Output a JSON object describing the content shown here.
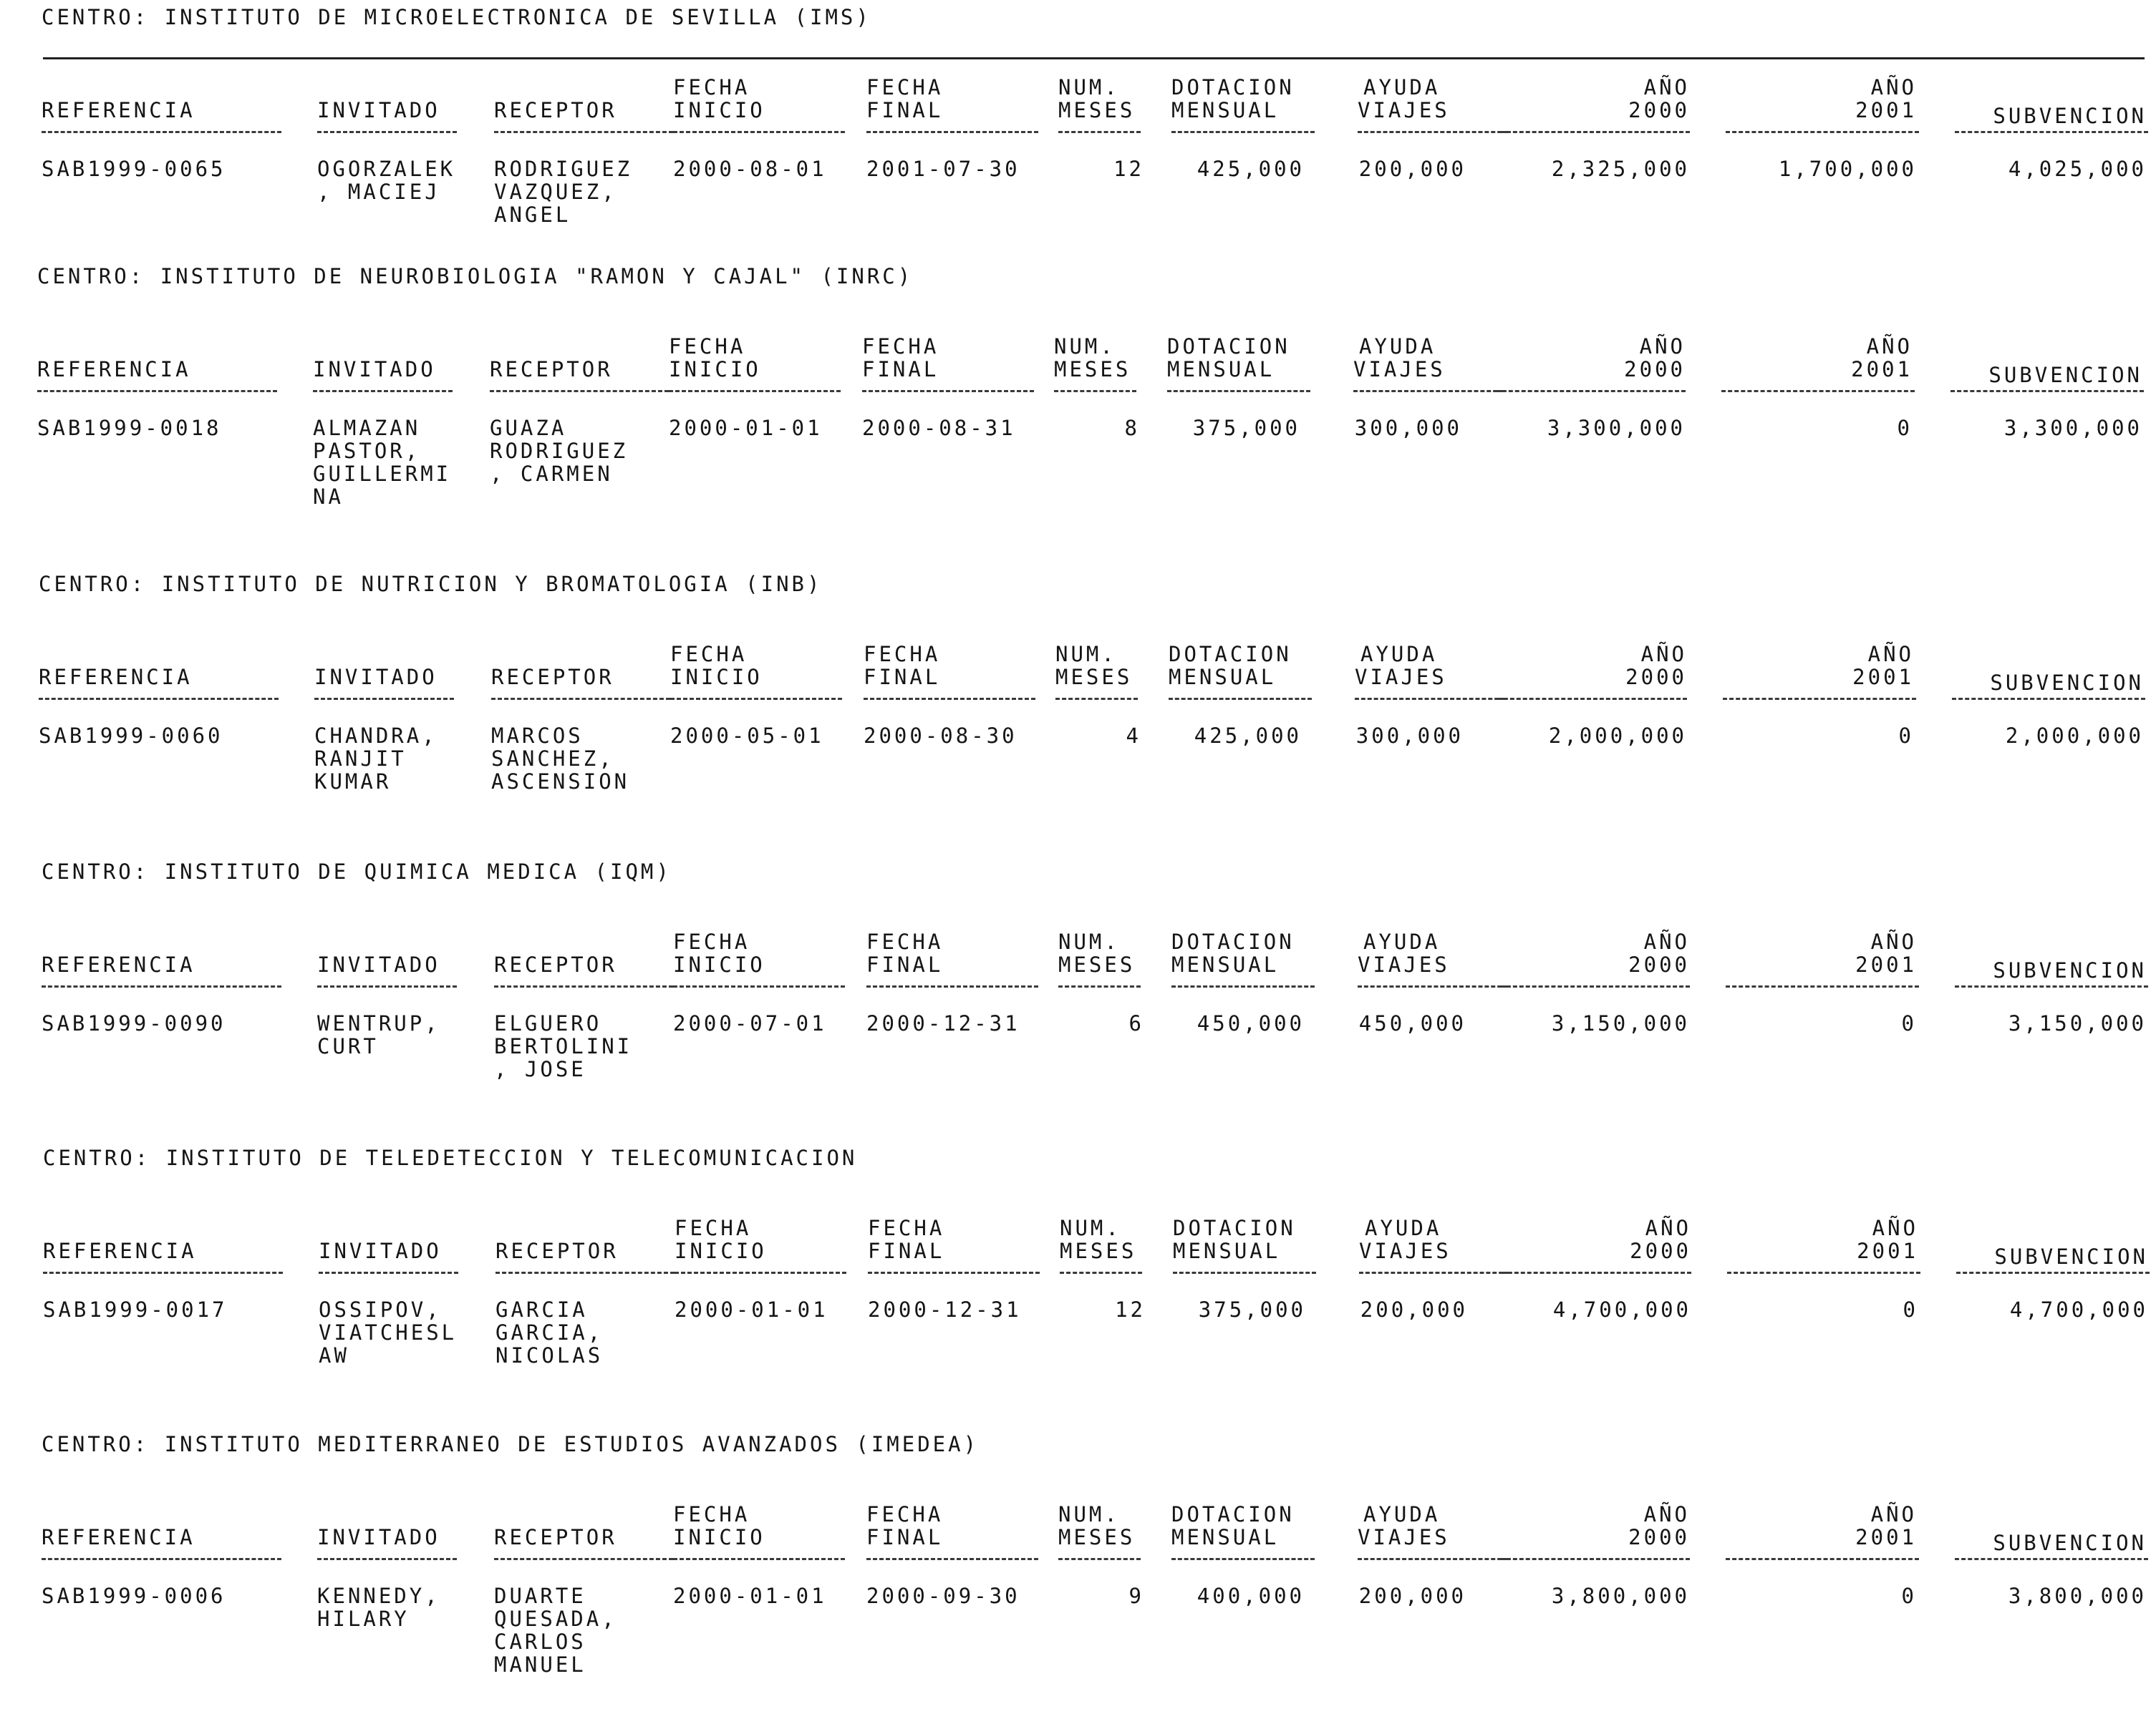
{
  "centro_label": "CENTRO:",
  "headers": {
    "referencia": "REFERENCIA",
    "invitado": "INVITADO",
    "receptor": "RECEPTOR",
    "fecha_inicio": [
      "FECHA",
      "INICIO"
    ],
    "fecha_final": [
      "FECHA",
      "FINAL"
    ],
    "num_meses": [
      "NUM.",
      "MESES"
    ],
    "dotacion": [
      "DOTACION",
      "MENSUAL"
    ],
    "ayuda": [
      "AYUDA",
      "VIAJES"
    ],
    "ano2000": [
      "AÑO",
      "2000"
    ],
    "ano2001": [
      "AÑO",
      "2001"
    ],
    "subvencion": "SUBVENCION"
  },
  "sections": [
    {
      "centro": "INSTITUTO DE MICROELECTRONICA DE SEVILLA (IMS)",
      "referencia": "SAB1999-0065",
      "invitado": [
        "OGORZALEK",
        ", MACIEJ"
      ],
      "receptor": [
        "RODRIGUEZ",
        "VAZQUEZ,",
        "ANGEL"
      ],
      "fecha_inicio": "2000-08-01",
      "fecha_final": "2001-07-30",
      "meses": "12",
      "dotacion": "425,000",
      "ayuda": "200,000",
      "ano2000": "2,325,000",
      "ano2001": "1,700,000",
      "subvencion": "4,025,000"
    },
    {
      "centro": "INSTITUTO DE NEUROBIOLOGIA \"RAMON Y CAJAL\" (INRC)",
      "referencia": "SAB1999-0018",
      "invitado": [
        "ALMAZAN",
        "PASTOR,",
        "GUILLERMI",
        "NA"
      ],
      "receptor": [
        "GUAZA",
        "RODRIGUEZ",
        ", CARMEN"
      ],
      "fecha_inicio": "2000-01-01",
      "fecha_final": "2000-08-31",
      "meses": "8",
      "dotacion": "375,000",
      "ayuda": "300,000",
      "ano2000": "3,300,000",
      "ano2001": "0",
      "subvencion": "3,300,000"
    },
    {
      "centro": "INSTITUTO DE NUTRICION Y BROMATOLOGIA (INB)",
      "referencia": "SAB1999-0060",
      "invitado": [
        "CHANDRA,",
        "RANJIT",
        "KUMAR"
      ],
      "receptor": [
        "MARCOS",
        "SANCHEZ,",
        "ASCENSION"
      ],
      "fecha_inicio": "2000-05-01",
      "fecha_final": "2000-08-30",
      "meses": "4",
      "dotacion": "425,000",
      "ayuda": "300,000",
      "ano2000": "2,000,000",
      "ano2001": "0",
      "subvencion": "2,000,000"
    },
    {
      "centro": "INSTITUTO DE QUIMICA MEDICA (IQM)",
      "referencia": "SAB1999-0090",
      "invitado": [
        "WENTRUP,",
        "CURT"
      ],
      "receptor": [
        "ELGUERO",
        "BERTOLINI",
        ", JOSE"
      ],
      "fecha_inicio": "2000-07-01",
      "fecha_final": "2000-12-31",
      "meses": "6",
      "dotacion": "450,000",
      "ayuda": "450,000",
      "ano2000": "3,150,000",
      "ano2001": "0",
      "subvencion": "3,150,000"
    },
    {
      "centro": "INSTITUTO DE TELEDETECCION Y TELECOMUNICACION",
      "referencia": "SAB1999-0017",
      "invitado": [
        "OSSIPOV,",
        "VIATCHESL",
        "AW"
      ],
      "receptor": [
        "GARCIA",
        "GARCIA,",
        "NICOLAS"
      ],
      "fecha_inicio": "2000-01-01",
      "fecha_final": "2000-12-31",
      "meses": "12",
      "dotacion": "375,000",
      "ayuda": "200,000",
      "ano2000": "4,700,000",
      "ano2001": "0",
      "subvencion": "4,700,000"
    },
    {
      "centro": "INSTITUTO MEDITERRANEO DE ESTUDIOS AVANZADOS (IMEDEA)",
      "referencia": "SAB1999-0006",
      "invitado": [
        "KENNEDY,",
        "HILARY"
      ],
      "receptor": [
        "DUARTE",
        "QUESADA,",
        "CARLOS",
        "MANUEL"
      ],
      "fecha_inicio": "2000-01-01",
      "fecha_final": "2000-09-30",
      "meses": "9",
      "dotacion": "400,000",
      "ayuda": "200,000",
      "ano2000": "3,800,000",
      "ano2001": "0",
      "subvencion": "3,800,000"
    }
  ]
}
